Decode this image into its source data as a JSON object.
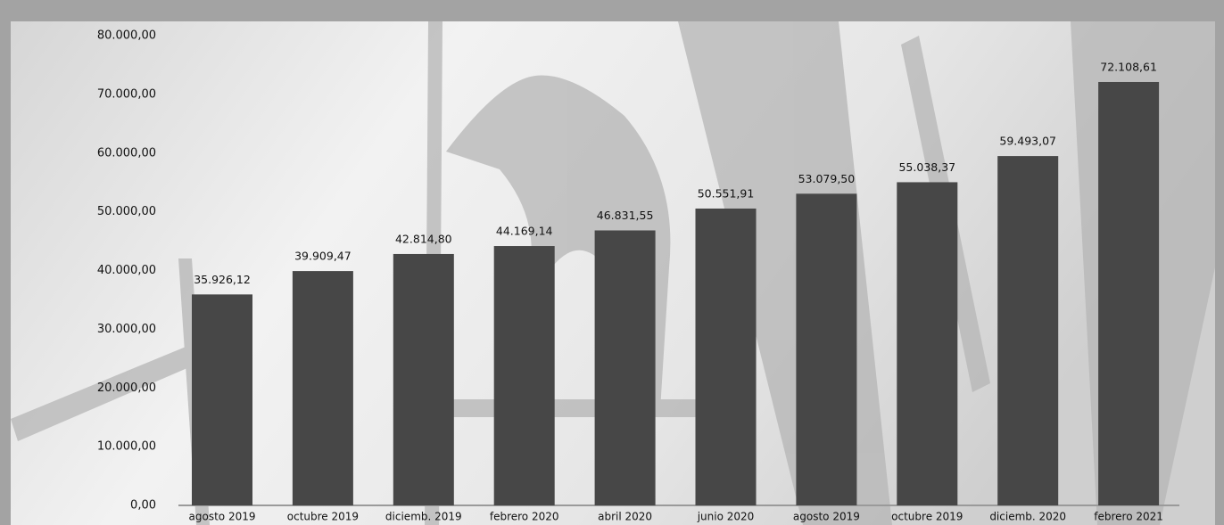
{
  "chart_data": {
    "type": "bar",
    "categories": [
      "agosto 2019",
      "octubre 2019",
      "diciemb. 2019",
      "febrero 2020",
      "abril 2020",
      "junio 2020",
      "agosto 2019",
      "octubre 2019",
      "diciemb. 2020",
      "febrero 2021"
    ],
    "values": [
      35926.12,
      39909.47,
      42814.8,
      44169.14,
      46831.55,
      50551.91,
      53079.5,
      55038.37,
      59493.07,
      72108.61
    ],
    "value_labels": [
      "35.926,12",
      "39.909,47",
      "42.814,80",
      "44.169,14",
      "46.831,55",
      "50.551,91",
      "53.079,50",
      "55.038,37",
      "59.493,07",
      "72.108,61"
    ],
    "color": "#474747",
    "ylim": [
      0,
      80000
    ],
    "yticks": [
      {
        "value": 0,
        "label": "0,00"
      },
      {
        "value": 10000,
        "label": "10.000,00"
      },
      {
        "value": 20000,
        "label": "20.000,00"
      },
      {
        "value": 30000,
        "label": "30.000,00"
      },
      {
        "value": 40000,
        "label": "40.000,00"
      },
      {
        "value": 50000,
        "label": "50.000,00"
      },
      {
        "value": 60000,
        "label": "60.000,00"
      },
      {
        "value": 70000,
        "label": "70.000,00"
      },
      {
        "value": 80000,
        "label": "80.000,00"
      }
    ],
    "grid": false
  }
}
